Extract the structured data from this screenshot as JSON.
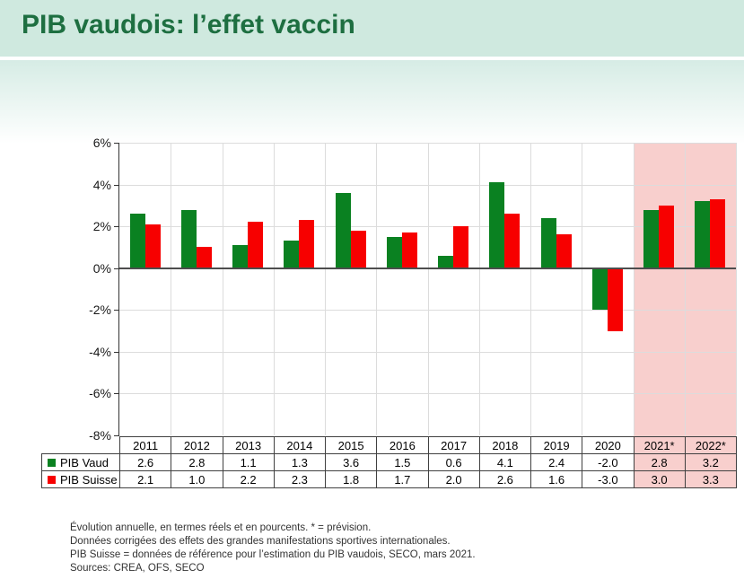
{
  "title": "PIB vaudois: l’effet vaccin",
  "colors": {
    "title_green": "#1e6f41",
    "header_band": "#cfe9df",
    "vaud_green": "#0a8121",
    "suisse_red": "#f70000",
    "forecast_pink": "#f8cfcd",
    "gridline": "#dcdcdc",
    "zero_line": "#4d4d4d",
    "axis_line": "#333333",
    "table_border": "#404040"
  },
  "chart_data": {
    "type": "bar",
    "title": "",
    "xlabel": "",
    "ylabel": "",
    "categories": [
      "2011",
      "2012",
      "2013",
      "2014",
      "2015",
      "2016",
      "2017",
      "2018",
      "2019",
      "2020",
      "2021*",
      "2022*"
    ],
    "series": [
      {
        "name": "PIB Vaud",
        "color_key": "vaud_green",
        "values": [
          2.6,
          2.8,
          1.1,
          1.3,
          3.6,
          1.5,
          0.6,
          4.1,
          2.4,
          -2.0,
          2.8,
          3.2
        ]
      },
      {
        "name": "PIB Suisse",
        "color_key": "suisse_red",
        "values": [
          2.1,
          1.0,
          2.2,
          2.3,
          1.8,
          1.7,
          2.0,
          2.6,
          1.6,
          -3.0,
          3.0,
          3.3
        ]
      }
    ],
    "ylim": [
      -8,
      6
    ],
    "ytick_step": 2,
    "ytick_suffix": "%",
    "ytick_labels": [
      "6%",
      "4%",
      "2%",
      "0%",
      "-2%",
      "-4%",
      "-6%",
      "-8%"
    ],
    "grid": true,
    "forecast_categories": [
      "2021*",
      "2022*"
    ],
    "legend_position": "table-left"
  },
  "footnotes": [
    "Évolution annuelle, en termes réels et en pourcents. * = prévision.",
    "Données corrigées des effets des grandes manifestations sportives internationales.",
    "PIB Suisse = données de référence pour l’estimation du PIB vaudois, SECO, mars 2021.",
    "Sources: CREA, OFS, SECO"
  ]
}
